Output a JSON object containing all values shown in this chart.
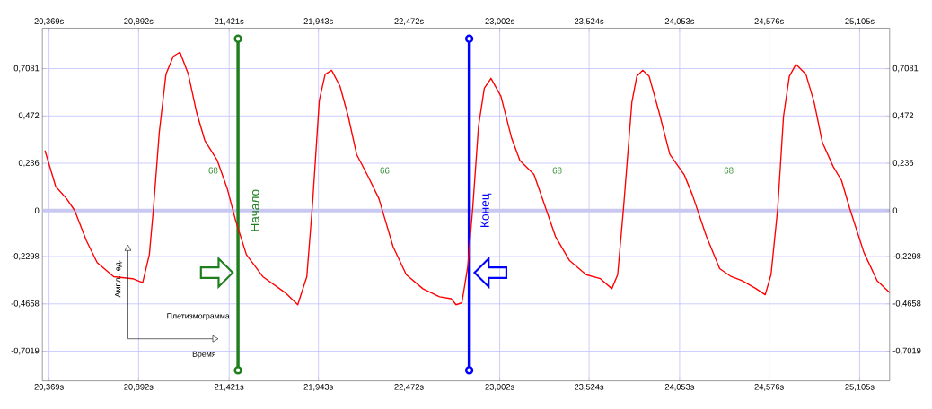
{
  "chart_data": {
    "type": "line",
    "x": [
      20.345,
      20.408,
      20.471,
      20.519,
      20.587,
      20.65,
      20.747,
      20.858,
      20.916,
      20.955,
      20.979,
      21.013,
      21.052,
      21.095,
      21.134,
      21.183,
      21.231,
      21.279,
      21.352,
      21.41,
      21.459,
      21.522,
      21.618,
      21.749,
      21.822,
      21.875,
      21.909,
      21.948,
      21.982,
      22.02,
      22.069,
      22.117,
      22.166,
      22.233,
      22.296,
      22.379,
      22.456,
      22.553,
      22.65,
      22.718,
      22.747,
      22.781,
      22.815,
      22.844,
      22.878,
      22.912,
      22.951,
      23.009,
      23.072,
      23.12,
      23.202,
      23.251,
      23.328,
      23.41,
      23.507,
      23.59,
      23.657,
      23.691,
      23.725,
      23.774,
      23.803,
      23.837,
      23.875,
      23.933,
      23.996,
      24.079,
      24.127,
      24.21,
      24.287,
      24.355,
      24.418,
      24.5,
      24.553,
      24.587,
      24.626,
      24.66,
      24.694,
      24.733,
      24.791,
      24.839,
      24.887,
      24.95,
      24.999,
      25.047,
      25.13,
      25.207,
      25.28
    ],
    "series": [
      {
        "color": "#ff0000",
        "values": [
          0.3,
          0.12,
          0.06,
          0.0,
          -0.15,
          -0.26,
          -0.33,
          -0.34,
          -0.36,
          -0.22,
          0.01,
          0.39,
          0.68,
          0.77,
          0.79,
          0.68,
          0.49,
          0.35,
          0.25,
          0.11,
          -0.05,
          -0.22,
          -0.33,
          -0.41,
          -0.47,
          -0.33,
          0.04,
          0.55,
          0.68,
          0.7,
          0.62,
          0.47,
          0.28,
          0.17,
          0.06,
          -0.18,
          -0.32,
          -0.39,
          -0.43,
          -0.44,
          -0.47,
          -0.46,
          -0.28,
          0.01,
          0.42,
          0.61,
          0.66,
          0.57,
          0.36,
          0.25,
          0.18,
          0.06,
          -0.13,
          -0.25,
          -0.32,
          -0.34,
          -0.39,
          -0.32,
          0.01,
          0.54,
          0.67,
          0.7,
          0.67,
          0.49,
          0.28,
          0.18,
          0.08,
          -0.13,
          -0.29,
          -0.33,
          -0.35,
          -0.39,
          -0.42,
          -0.32,
          0.01,
          0.47,
          0.67,
          0.73,
          0.68,
          0.54,
          0.34,
          0.22,
          0.15,
          0.01,
          -0.21,
          -0.35,
          -0.41
        ]
      }
    ],
    "xlim": [
      20.33,
      25.28
    ],
    "ylim": [
      -0.85,
      0.91
    ],
    "xticks": [
      {
        "value": 20.369,
        "label": "20,369s"
      },
      {
        "value": 20.892,
        "label": "20,892s"
      },
      {
        "value": 21.421,
        "label": "21,421s"
      },
      {
        "value": 21.943,
        "label": "21,943s"
      },
      {
        "value": 22.472,
        "label": "22,472s"
      },
      {
        "value": 23.002,
        "label": "23,002s"
      },
      {
        "value": 23.524,
        "label": "23,524s"
      },
      {
        "value": 24.053,
        "label": "24,053s"
      },
      {
        "value": 24.576,
        "label": "24,576s"
      },
      {
        "value": 25.105,
        "label": "25,105s"
      }
    ],
    "x2lim": [
      20.33,
      25.28
    ],
    "x2ticks": [
      {
        "value": 20.369,
        "label": "20,369s"
      },
      {
        "value": 20.892,
        "label": "20,892s"
      },
      {
        "value": 21.421,
        "label": "21,421s"
      },
      {
        "value": 21.943,
        "label": "21,943s"
      },
      {
        "value": 22.472,
        "label": "22,472s"
      },
      {
        "value": 23.002,
        "label": "23,002s"
      },
      {
        "value": 23.524,
        "label": "23,524s"
      },
      {
        "value": 24.053,
        "label": "24,053s"
      },
      {
        "value": 24.576,
        "label": "24,576s"
      },
      {
        "value": 25.105,
        "label": "25,105s"
      }
    ],
    "yticks": [
      {
        "value": 0.7081,
        "label": "0,7081"
      },
      {
        "value": 0.472,
        "label": "0,472"
      },
      {
        "value": 0.236,
        "label": "0,236"
      },
      0,
      {
        "value": -0.2298,
        "label": "-0,2298"
      },
      {
        "value": -0.4658,
        "label": "-0,4658"
      },
      {
        "value": -0.7019,
        "label": "-0,7019"
      }
    ],
    "y2lim": [
      -0.85,
      0.91
    ],
    "y2ticks": [
      {
        "value": 0.7081,
        "label": "0,7081"
      },
      {
        "value": 0.472,
        "label": "0,472"
      },
      {
        "value": 0.236,
        "label": "0,236"
      },
      0,
      {
        "value": -0.2298,
        "label": "-0,2298"
      },
      {
        "value": -0.4658,
        "label": "-0,4658"
      },
      {
        "value": -0.7019,
        "label": "-0,7019"
      }
    ],
    "ref_lines": [
      {
        "axis": "y",
        "value": 0,
        "color": "#c8c8f0"
      },
      {
        "axis": "x",
        "value": 21.473,
        "label": "Начало",
        "color": "#1f7f1f"
      },
      {
        "axis": "x",
        "value": 22.824,
        "label": "Конец",
        "color": "#0000ff"
      }
    ],
    "annotations": [
      "68",
      "66",
      "68",
      "68",
      "Ампл., ед.",
      "Плетизмограмма",
      "Время"
    ],
    "grid": true,
    "marker": "none",
    "line_style": "solid"
  }
}
